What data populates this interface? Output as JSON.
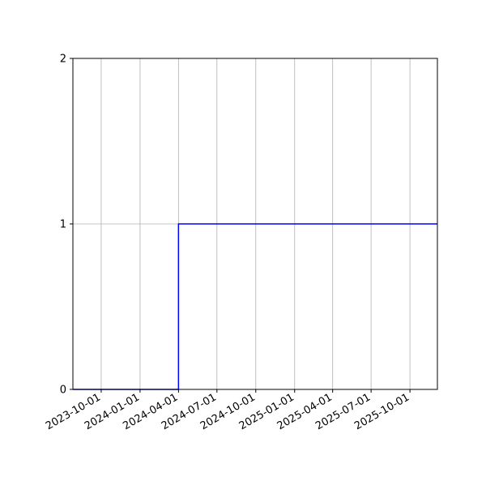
{
  "chart_data": {
    "type": "line",
    "drawstyle": "steps-post",
    "title": "",
    "xlabel": "",
    "ylabel": "",
    "x_type": "date",
    "xlim": [
      "2023-07-26",
      "2025-12-05"
    ],
    "ylim": [
      0,
      2
    ],
    "x_ticks": [
      "2023-10-01",
      "2024-01-01",
      "2024-04-01",
      "2024-07-01",
      "2024-10-01",
      "2025-01-01",
      "2025-04-01",
      "2025-07-01",
      "2025-10-01"
    ],
    "y_ticks": [
      0,
      1,
      2
    ],
    "grid": true,
    "legend": "none",
    "series": [
      {
        "color": "#0000ff",
        "x": [
          "2023-07-26",
          "2024-04-01",
          "2025-12-05"
        ],
        "y": [
          0,
          1,
          1
        ]
      }
    ]
  }
}
